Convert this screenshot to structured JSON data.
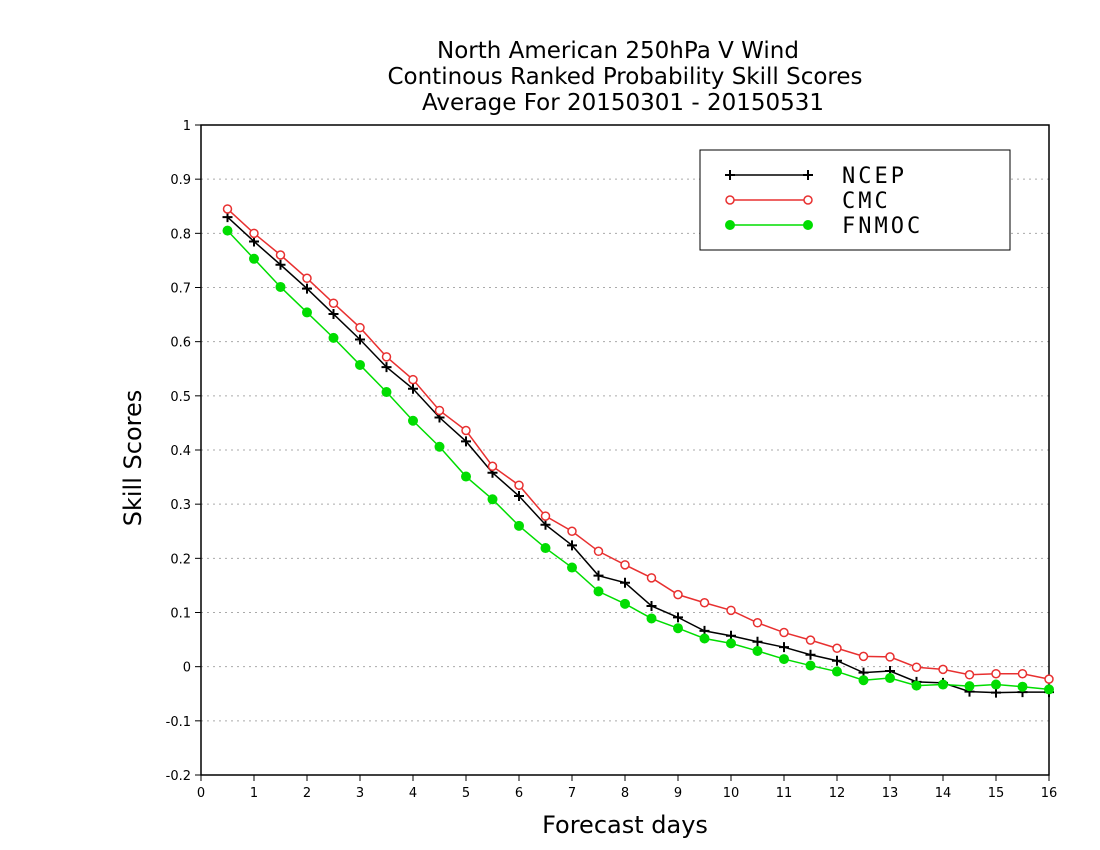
{
  "chart_data": {
    "type": "line",
    "title": [
      "North American 250hPa V Wind",
      "Continous Ranked Probability Skill Scores",
      "Average For 20150301 - 20150531"
    ],
    "xlabel": "Forecast days",
    "ylabel": "Skill Scores",
    "xlim": [
      0,
      16
    ],
    "ylim": [
      -0.2,
      1
    ],
    "x_ticks": [
      "0",
      "1",
      "2",
      "3",
      "4",
      "5",
      "6",
      "7",
      "8",
      "9",
      "10",
      "11",
      "12",
      "13",
      "14",
      "15",
      "16"
    ],
    "y_ticks": [
      "-0.2",
      "-0.1",
      "0",
      "0.1",
      "0.2",
      "0.3",
      "0.4",
      "0.5",
      "0.6",
      "0.7",
      "0.8",
      "0.9",
      "1"
    ],
    "grid": true,
    "legend_position": "top-right",
    "x": [
      0.5,
      1,
      1.5,
      2,
      2.5,
      3,
      3.5,
      4,
      4.5,
      5,
      5.5,
      6,
      6.5,
      7,
      7.5,
      8,
      8.5,
      9,
      9.5,
      10,
      10.5,
      11,
      11.5,
      12,
      12.5,
      13,
      13.5,
      14,
      14.5,
      15,
      15.5,
      16
    ],
    "series": [
      {
        "name": "NCEP",
        "color": "#000000",
        "marker": "plus",
        "values": [
          0.83,
          0.785,
          0.742,
          0.698,
          0.651,
          0.604,
          0.553,
          0.513,
          0.46,
          0.416,
          0.358,
          0.315,
          0.262,
          0.224,
          0.168,
          0.155,
          0.112,
          0.091,
          0.066,
          0.057,
          0.046,
          0.036,
          0.022,
          0.011,
          -0.011,
          -0.008,
          -0.028,
          -0.03,
          -0.046,
          -0.048,
          -0.047,
          -0.047
        ]
      },
      {
        "name": "CMC",
        "color": "#e83030",
        "marker": "open-circle",
        "values": [
          0.845,
          0.8,
          0.76,
          0.717,
          0.671,
          0.626,
          0.572,
          0.53,
          0.473,
          0.436,
          0.37,
          0.335,
          0.278,
          0.25,
          0.213,
          0.188,
          0.164,
          0.133,
          0.118,
          0.104,
          0.081,
          0.063,
          0.049,
          0.034,
          0.019,
          0.018,
          -0.001,
          -0.005,
          -0.015,
          -0.013,
          -0.013,
          -0.023
        ]
      },
      {
        "name": "FNMOC",
        "color": "#00dd00",
        "marker": "filled-circle",
        "values": [
          0.805,
          0.753,
          0.701,
          0.654,
          0.607,
          0.557,
          0.507,
          0.454,
          0.406,
          0.351,
          0.309,
          0.26,
          0.219,
          0.183,
          0.139,
          0.116,
          0.089,
          0.071,
          0.052,
          0.043,
          0.029,
          0.014,
          0.002,
          -0.009,
          -0.025,
          -0.021,
          -0.035,
          -0.033,
          -0.036,
          -0.033,
          -0.037,
          -0.042
        ]
      }
    ]
  }
}
